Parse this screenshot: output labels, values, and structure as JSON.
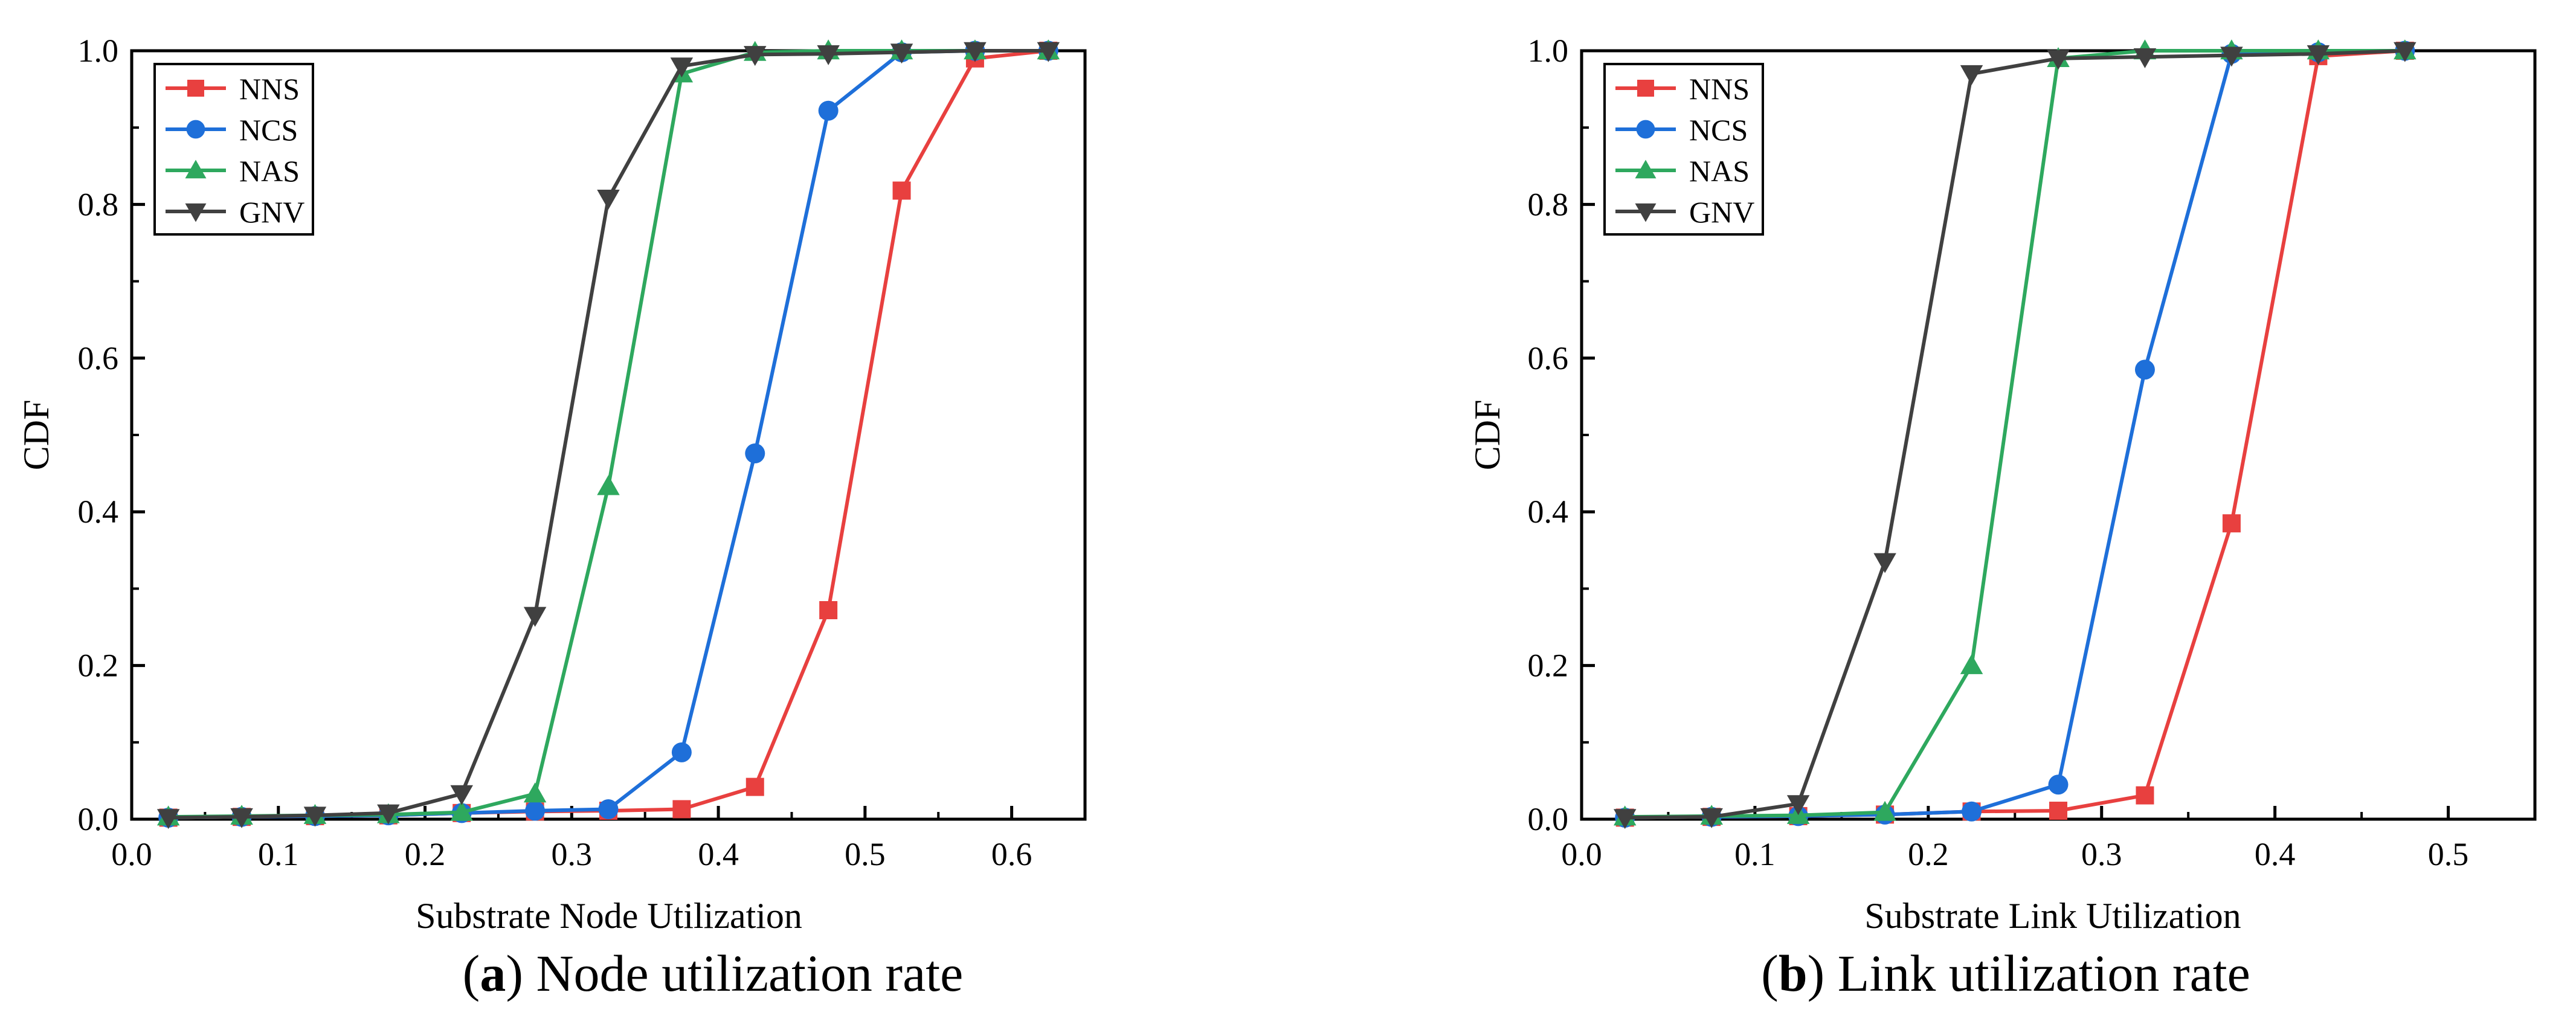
{
  "figure": {
    "panels": [
      {
        "prefix": "(",
        "letter": "a",
        "caption": ") Node utilization rate"
      },
      {
        "prefix": "(",
        "letter": "b",
        "caption": ") Link utilization rate"
      }
    ]
  },
  "chart_data": [
    {
      "type": "line",
      "title": "",
      "xlabel": "Substrate Node Utilization",
      "ylabel": "CDF",
      "xlim": [
        0.0,
        0.65
      ],
      "ylim": [
        0.0,
        1.0
      ],
      "xticks": [
        "0.0",
        "0.1",
        "0.2",
        "0.3",
        "0.4",
        "0.5",
        "0.6"
      ],
      "yticks": [
        "0.0",
        "0.2",
        "0.4",
        "0.6",
        "0.8",
        "1.0"
      ],
      "legend_position": "top-left",
      "x": [
        0.025,
        0.075,
        0.125,
        0.175,
        0.225,
        0.275,
        0.325,
        0.375,
        0.425,
        0.475,
        0.525,
        0.575,
        0.625
      ],
      "series": [
        {
          "name": "NNS",
          "color": "#e8403f",
          "marker": "square",
          "values": [
            0.002,
            0.003,
            0.004,
            0.005,
            0.008,
            0.01,
            0.011,
            0.013,
            0.042,
            0.272,
            0.818,
            0.99,
            1.0
          ]
        },
        {
          "name": "NCS",
          "color": "#1e6fd9",
          "marker": "circle",
          "values": [
            0.002,
            0.003,
            0.004,
            0.005,
            0.008,
            0.011,
            0.013,
            0.087,
            0.476,
            0.922,
            0.998,
            1.0,
            1.0
          ]
        },
        {
          "name": "NAS",
          "color": "#2ea85e",
          "marker": "triangle-up",
          "values": [
            0.003,
            0.004,
            0.005,
            0.006,
            0.009,
            0.033,
            0.433,
            0.97,
            0.998,
            1.0,
            1.0,
            1.0,
            1.0
          ]
        },
        {
          "name": "GNV",
          "color": "#404040",
          "marker": "triangle-down",
          "values": [
            0.002,
            0.003,
            0.005,
            0.008,
            0.033,
            0.265,
            0.808,
            0.98,
            0.995,
            0.996,
            0.998,
            1.0,
            1.0
          ]
        }
      ]
    },
    {
      "type": "line",
      "title": "",
      "xlabel": "Substrate Link Utilization",
      "ylabel": "CDF",
      "xlim": [
        0.0,
        0.55
      ],
      "ylim": [
        0.0,
        1.0
      ],
      "xticks": [
        "0.0",
        "0.1",
        "0.2",
        "0.3",
        "0.4",
        "0.5"
      ],
      "yticks": [
        "0.0",
        "0.2",
        "0.4",
        "0.6",
        "0.8",
        "1.0"
      ],
      "legend_position": "top-left",
      "x": [
        0.025,
        0.075,
        0.125,
        0.175,
        0.225,
        0.275,
        0.325,
        0.375,
        0.425,
        0.475
      ],
      "series": [
        {
          "name": "NNS",
          "color": "#e8403f",
          "marker": "square",
          "values": [
            0.002,
            0.003,
            0.004,
            0.006,
            0.01,
            0.011,
            0.031,
            0.385,
            0.993,
            1.0
          ]
        },
        {
          "name": "NCS",
          "color": "#1e6fd9",
          "marker": "circle",
          "values": [
            0.002,
            0.003,
            0.004,
            0.006,
            0.01,
            0.045,
            0.585,
            0.996,
            0.998,
            1.0
          ]
        },
        {
          "name": "NAS",
          "color": "#2ea85e",
          "marker": "triangle-up",
          "values": [
            0.003,
            0.004,
            0.005,
            0.009,
            0.2,
            0.99,
            1.0,
            1.0,
            1.0,
            1.0
          ]
        },
        {
          "name": "GNV",
          "color": "#404040",
          "marker": "triangle-down",
          "values": [
            0.002,
            0.003,
            0.02,
            0.335,
            0.97,
            0.99,
            0.992,
            0.994,
            0.996,
            1.0
          ]
        }
      ]
    }
  ]
}
